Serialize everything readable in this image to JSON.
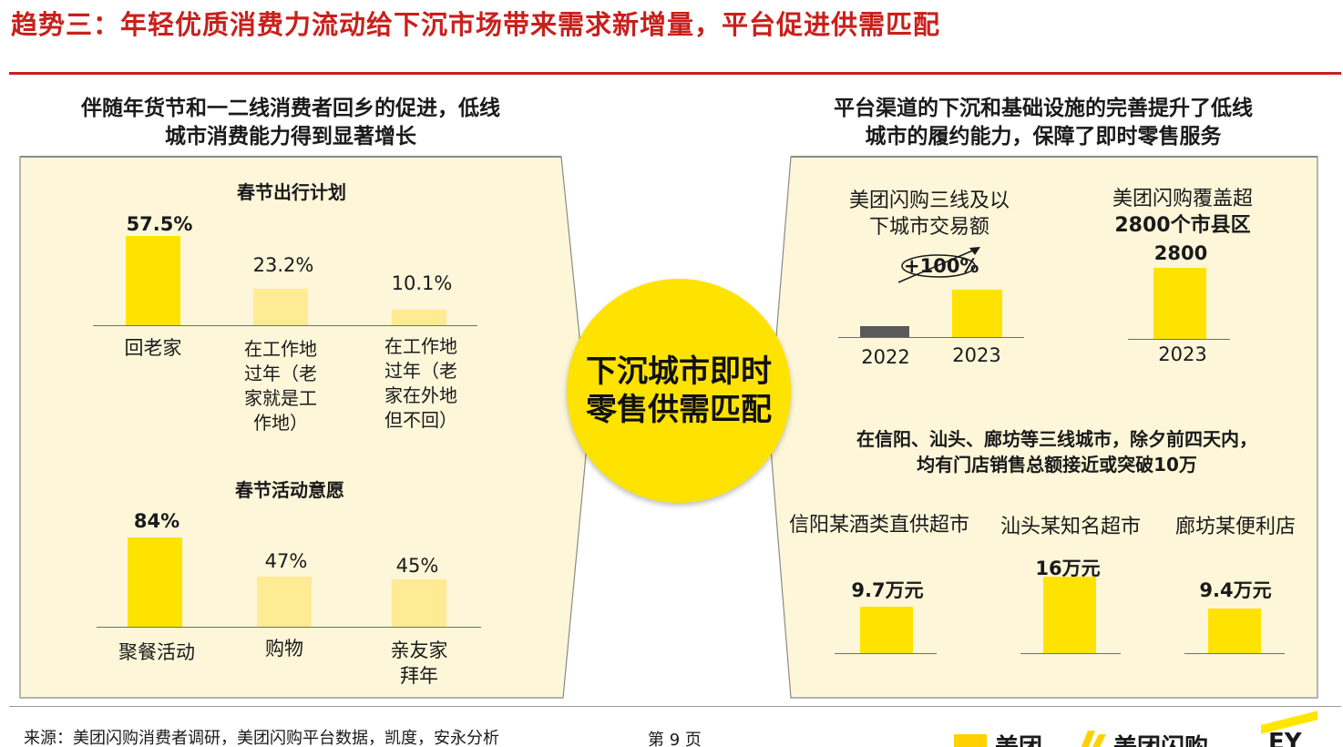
{
  "title": "趋势三：年轻优质消费力流动给下沉市场带来需求新增量，平台促进供需匹配",
  "left": {
    "heading_line1": "伴随年货节和一二线消费者回乡的促进，低线",
    "heading_line2": "城市消费能力得到显著增长"
  },
  "right": {
    "heading_line1": "平台渠道的下沉和基础设施的完善提升了低线",
    "heading_line2": "城市的履约能力，保障了即时零售服务",
    "note_line1": "在信阳、汕头、廊坊等三线城市，除夕前四天内，",
    "note_line2": "均有门店销售总额接近或突破10万"
  },
  "center": {
    "line1": "下沉城市即时",
    "line2": "零售供需匹配"
  },
  "chart_data": [
    {
      "type": "bar",
      "title": "春节出行计划",
      "categories": [
        "回老家",
        "在工作地过年（老家就是工作地）",
        "在工作地过年（老家在外地但不回）"
      ],
      "category_lines": [
        [
          "回老家"
        ],
        [
          "在工作地",
          "过年（老",
          "家就是工",
          "作地）"
        ],
        [
          "在工作地",
          "过年（老",
          "家在外地",
          "但不回）"
        ]
      ],
      "values": [
        57.5,
        23.2,
        10.1
      ],
      "labels": [
        "57.5%",
        "23.2%",
        "10.1%"
      ],
      "unit": "%"
    },
    {
      "type": "bar",
      "title": "春节活动意愿",
      "categories": [
        "聚餐活动",
        "购物",
        "亲友家拜年"
      ],
      "category_lines": [
        [
          "聚餐活动"
        ],
        [
          "购物"
        ],
        [
          "亲友家",
          "拜年"
        ]
      ],
      "values": [
        84,
        47,
        45
      ],
      "labels": [
        "84%",
        "47%",
        "45%"
      ],
      "unit": "%"
    },
    {
      "type": "bar",
      "title_lines": [
        "美团闪购三线及以",
        "下城市交易额"
      ],
      "categories": [
        "2022",
        "2023"
      ],
      "values": [
        1,
        2
      ],
      "growth_label": "+100%"
    },
    {
      "type": "bar",
      "title_lines": [
        "美团闪购覆盖超",
        "2800个市县区"
      ],
      "categories": [
        "2023"
      ],
      "values": [
        2800
      ],
      "labels": [
        "2800"
      ]
    },
    {
      "type": "bar",
      "categories": [
        "信阳某酒类直供超市",
        "汕头某知名超市",
        "廊坊某便利店"
      ],
      "values": [
        9.7,
        16,
        9.4
      ],
      "labels": [
        "9.7万元",
        "16万元",
        "9.4万元"
      ],
      "unit": "万元"
    }
  ],
  "footer": {
    "source": "来源：美团闪购消费者调研，美团闪购平台数据，凯度，安永分析",
    "page": "第 9 页",
    "logo_meituan": "美团",
    "logo_shangou": "美团闪购",
    "logo_ey": "EY"
  },
  "colors": {
    "accent_red": "#c8201c",
    "bar_yellow": "#ffe300",
    "bar_light_yellow": "#ffeb94",
    "bar_grey": "#5a5a5a",
    "panel_bg": "#fdf6d9"
  }
}
